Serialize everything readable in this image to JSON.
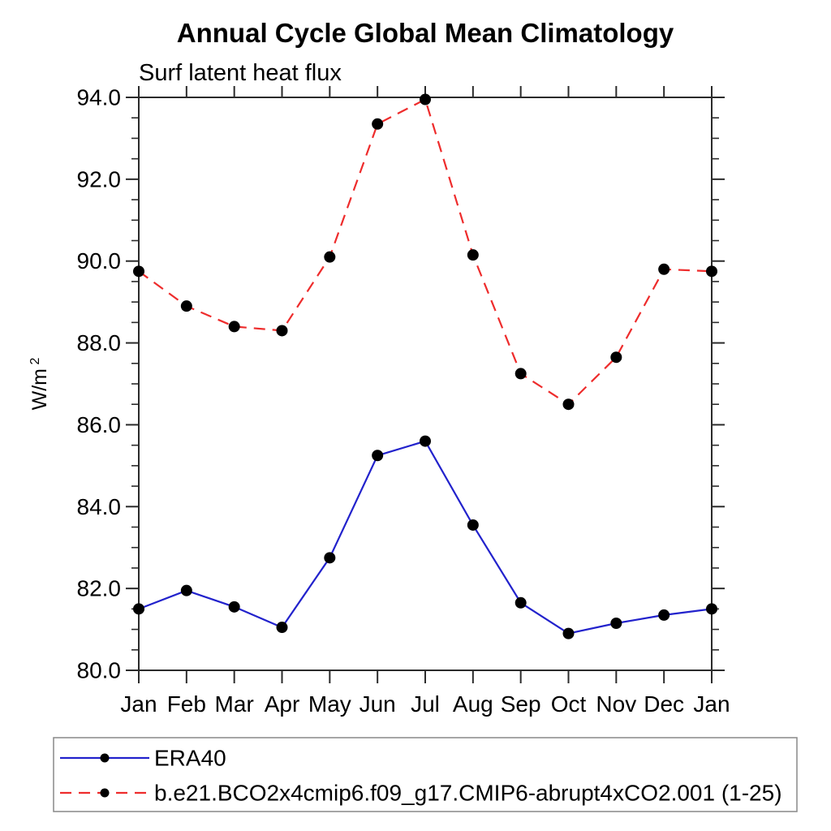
{
  "chart_data": {
    "type": "line",
    "title": "Annual Cycle Global Mean Climatology",
    "subtitle": "Surf latent heat flux",
    "ylabel_base": "W/m",
    "ylabel_exponent": "2",
    "categories": [
      "Jan",
      "Feb",
      "Mar",
      "Apr",
      "May",
      "Jun",
      "Jul",
      "Aug",
      "Sep",
      "Oct",
      "Nov",
      "Dec",
      "Jan"
    ],
    "ylim": [
      80.0,
      94.0
    ],
    "ytick_labels": [
      "80.0",
      "82.0",
      "84.0",
      "86.0",
      "88.0",
      "90.0",
      "92.0",
      "94.0"
    ],
    "ytick_major_step": 2.0,
    "ytick_minor_step": 0.5,
    "grid": false,
    "legend_position": "bottom-left-box",
    "axis_color": "#2b2b2b",
    "marker_color": "#000000",
    "series": [
      {
        "name": "ERA40",
        "color": "#2222cc",
        "line_style": "solid",
        "marker": "filled-circle",
        "values": [
          81.5,
          81.95,
          81.55,
          81.05,
          82.75,
          85.25,
          85.6,
          83.55,
          81.65,
          80.9,
          81.15,
          81.35,
          81.5
        ]
      },
      {
        "name": "b.e21.BCO2x4cmip6.f09_g17.CMIP6-abrupt4xCO2.001 (1-25)",
        "color": "#ee2c2c",
        "line_style": "dashed",
        "marker": "filled-circle",
        "values": [
          89.75,
          88.9,
          88.4,
          88.3,
          90.1,
          93.35,
          93.95,
          90.15,
          87.25,
          86.5,
          87.65,
          89.8,
          89.75
        ]
      }
    ]
  }
}
